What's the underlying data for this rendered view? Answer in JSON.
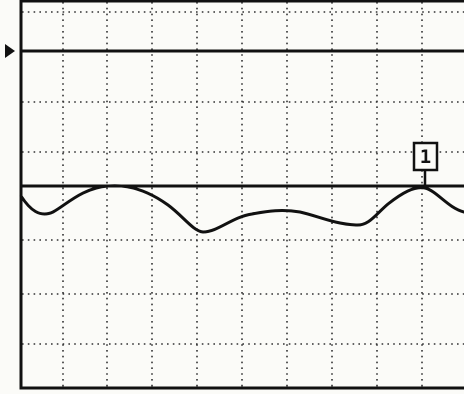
{
  "screen": {
    "background_color": "#fbfbf8",
    "grid_color": "#333333",
    "trace_color": "#111111",
    "grid_divisions_x": 10,
    "grid_divisions_y": 8,
    "grid_style": "dotted"
  },
  "ground_arrow_icon": "triangle-right-icon",
  "reference_lines": {
    "upper_label": "",
    "lower_label": ""
  },
  "marker": {
    "label": "1",
    "icon": "marker-1-icon"
  },
  "trace": {
    "shape": "wave"
  }
}
